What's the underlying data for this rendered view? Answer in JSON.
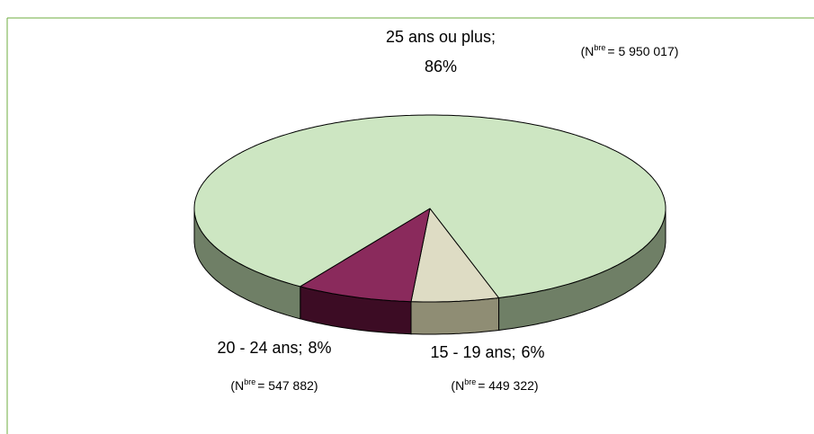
{
  "chart_data": {
    "type": "pie",
    "categories": [
      "15 - 19 ans",
      "20 - 24 ans",
      "25 ans ou plus"
    ],
    "values": [
      6,
      8,
      86
    ],
    "value_labels": [
      "6%",
      "8%",
      "86%"
    ],
    "label_separator": ";",
    "colors": [
      "#dedcc4",
      "#8a2a5c",
      "#cde6c2"
    ],
    "side_colors": [
      "#8f8d74",
      "#3c0c24",
      "#6f7f66"
    ],
    "annotations": [
      {
        "prefix": "(N",
        "sup": "bre",
        "text": "= 449 322)"
      },
      {
        "prefix": "(N",
        "sup": "bre",
        "text": "= 547 882)"
      },
      {
        "prefix": "(N",
        "sup": "bre",
        "text": "= 5 950 017)"
      }
    ]
  }
}
